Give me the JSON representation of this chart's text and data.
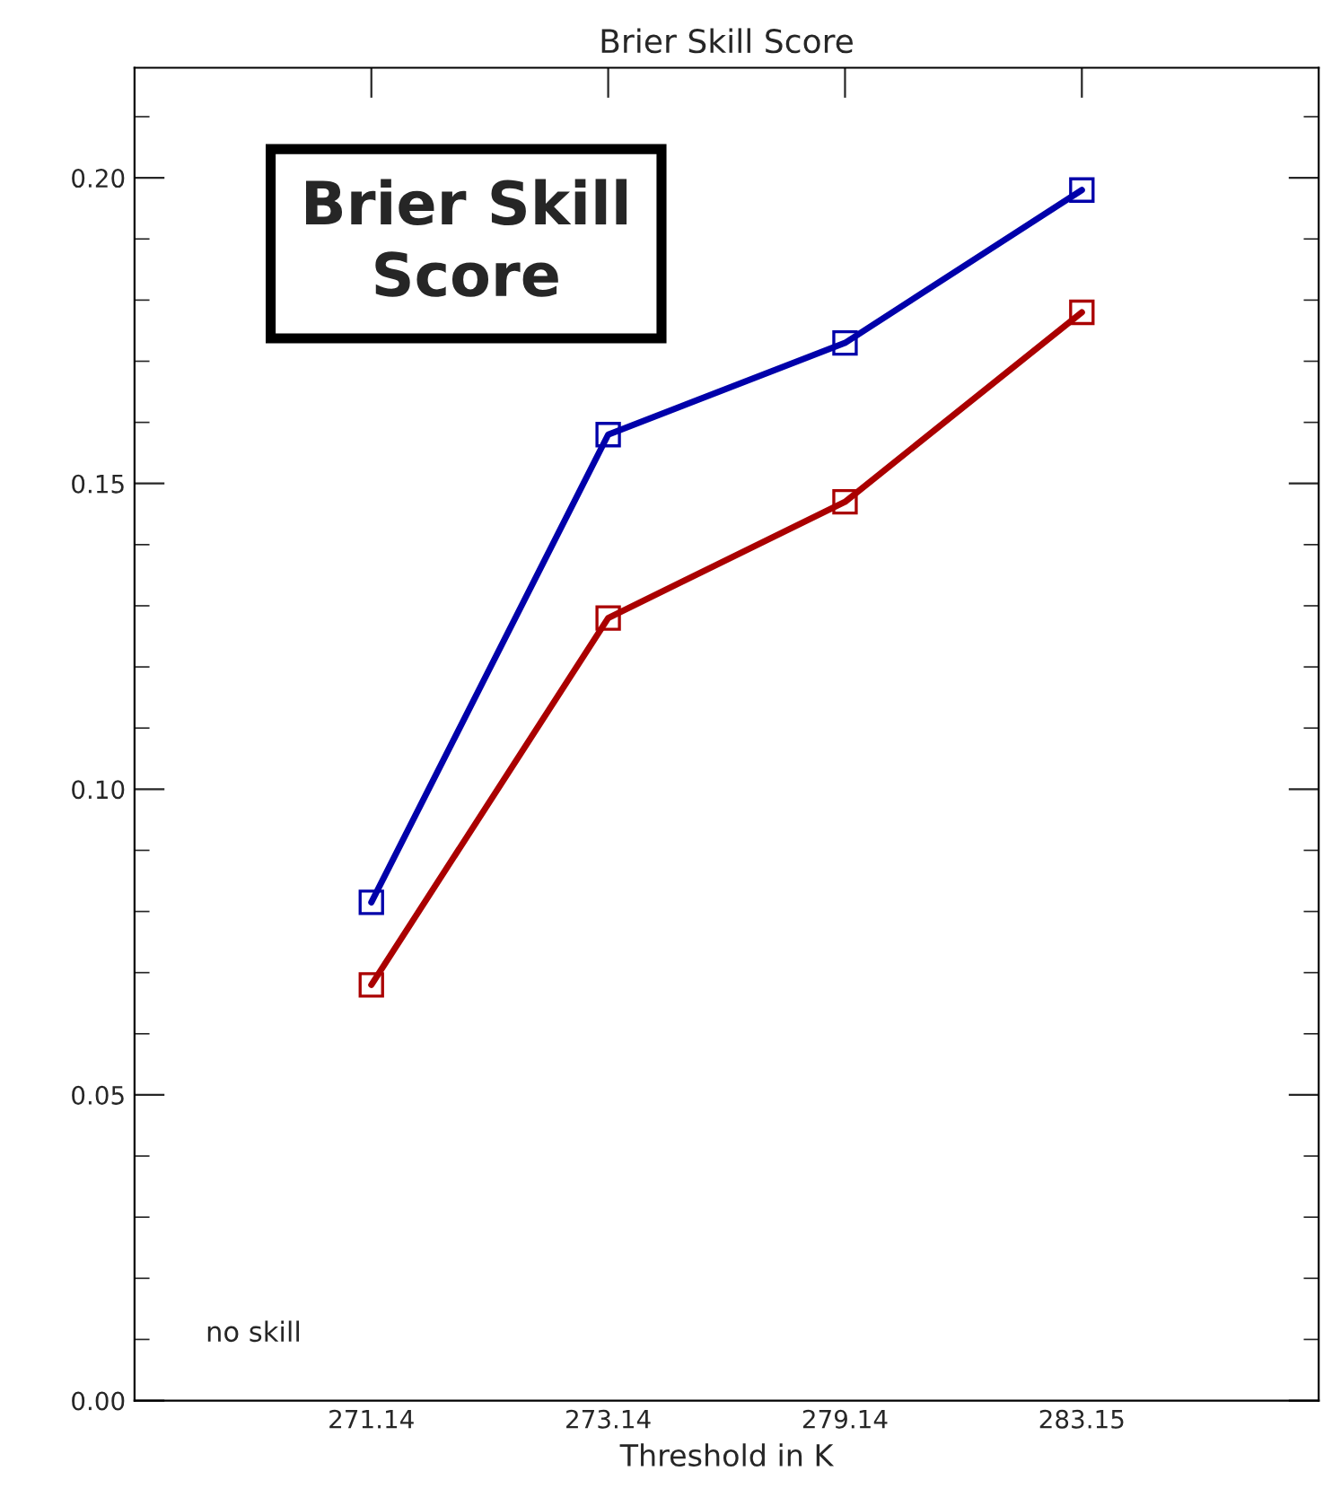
{
  "chart_data": {
    "type": "line",
    "title": "Brier Skill Score",
    "xlabel": "Threshold in K",
    "categories": [
      "271.14",
      "273.14",
      "279.14",
      "283.15"
    ],
    "series": [
      {
        "color": "#0000aa",
        "values": [
          0.0815,
          0.158,
          0.173,
          0.198
        ]
      },
      {
        "color": "#aa0000",
        "values": [
          0.068,
          0.128,
          0.147,
          0.178
        ]
      }
    ],
    "ylim": [
      0,
      0.218
    ],
    "yticks": [
      {
        "value": 0,
        "label": "0.00"
      },
      {
        "value": 0.05,
        "label": "0.05"
      },
      {
        "value": 0.1,
        "label": "0.10"
      },
      {
        "value": 0.15,
        "label": "0.15"
      },
      {
        "value": 0.2,
        "label": "0.20"
      }
    ],
    "annotations": [
      "Brier Skill\nScore",
      "no skill"
    ],
    "marker": "square",
    "line_style": "solid",
    "grid": false,
    "legend": false
  }
}
